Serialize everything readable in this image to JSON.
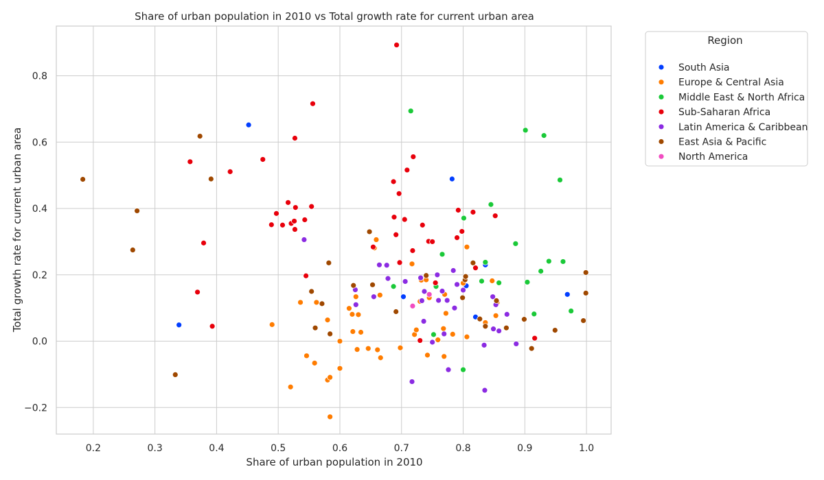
{
  "chart_data": {
    "type": "scatter",
    "title": "Share of urban population in 2010 vs Total growth rate for current urban area",
    "xlabel": "Share of urban population in 2010",
    "ylabel": "Total growth rate for current urban area",
    "xlim": [
      0.14,
      1.04
    ],
    "ylim": [
      -0.28,
      0.95
    ],
    "xticks": [
      0.2,
      0.3,
      0.4,
      0.5,
      0.6,
      0.7,
      0.8,
      0.9,
      1.0
    ],
    "xtick_labels": [
      "0.2",
      "0.3",
      "0.4",
      "0.5",
      "0.6",
      "0.7",
      "0.8",
      "0.9",
      "1.0"
    ],
    "yticks": [
      -0.2,
      0.0,
      0.2,
      0.4,
      0.6,
      0.8
    ],
    "ytick_labels": [
      "−0.2",
      "0.0",
      "0.2",
      "0.4",
      "0.6",
      "0.8"
    ],
    "grid": true,
    "legend": {
      "title": "Region",
      "placement": "outside-right"
    },
    "series": [
      {
        "name": "South Asia",
        "color": "#023eff",
        "points": [
          [
            0.452,
            0.652
          ],
          [
            0.339,
            0.049
          ],
          [
            0.782,
            0.489
          ],
          [
            0.703,
            0.134
          ],
          [
            0.805,
            0.167
          ],
          [
            0.836,
            0.23
          ],
          [
            0.82,
            0.073
          ],
          [
            0.969,
            0.141
          ]
        ]
      },
      {
        "name": "Europe & Central Asia",
        "color": "#ff7c00",
        "points": [
          [
            0.49,
            0.05
          ],
          [
            0.52,
            -0.138
          ],
          [
            0.536,
            0.117
          ],
          [
            0.546,
            -0.044
          ],
          [
            0.559,
            -0.066
          ],
          [
            0.562,
            0.117
          ],
          [
            0.58,
            -0.117
          ],
          [
            0.58,
            0.064
          ],
          [
            0.584,
            -0.228
          ],
          [
            0.584,
            -0.109
          ],
          [
            0.6,
            0.0
          ],
          [
            0.6,
            -0.082
          ],
          [
            0.615,
            0.099
          ],
          [
            0.62,
            0.081
          ],
          [
            0.621,
            0.029
          ],
          [
            0.626,
            0.134
          ],
          [
            0.628,
            -0.025
          ],
          [
            0.63,
            0.08
          ],
          [
            0.634,
            0.027
          ],
          [
            0.646,
            -0.022
          ],
          [
            0.656,
            0.281
          ],
          [
            0.659,
            0.306
          ],
          [
            0.661,
            -0.026
          ],
          [
            0.665,
            0.139
          ],
          [
            0.666,
            -0.05
          ],
          [
            0.698,
            -0.02
          ],
          [
            0.717,
            0.233
          ],
          [
            0.721,
            0.02
          ],
          [
            0.724,
            0.034
          ],
          [
            0.73,
            0.12
          ],
          [
            0.732,
            0.184
          ],
          [
            0.74,
            0.185
          ],
          [
            0.742,
            -0.042
          ],
          [
            0.745,
            0.131
          ],
          [
            0.759,
            0.004
          ],
          [
            0.768,
            0.038
          ],
          [
            0.769,
            -0.046
          ],
          [
            0.77,
            0.141
          ],
          [
            0.772,
            0.084
          ],
          [
            0.783,
            0.021
          ],
          [
            0.8,
            0.175
          ],
          [
            0.806,
            0.013
          ],
          [
            0.806,
            0.284
          ],
          [
            0.836,
            0.056
          ],
          [
            0.847,
            0.182
          ],
          [
            0.853,
            0.077
          ],
          [
            0.855,
            0.116
          ]
        ]
      },
      {
        "name": "Middle East & North Africa",
        "color": "#1ac938",
        "points": [
          [
            0.715,
            0.694
          ],
          [
            0.687,
            0.165
          ],
          [
            0.752,
            0.02
          ],
          [
            0.756,
            0.165
          ],
          [
            0.766,
            0.262
          ],
          [
            0.801,
            0.371
          ],
          [
            0.8,
            -0.086
          ],
          [
            0.83,
            0.181
          ],
          [
            0.836,
            0.238
          ],
          [
            0.845,
            0.412
          ],
          [
            0.858,
            0.176
          ],
          [
            0.885,
            0.294
          ],
          [
            0.901,
            0.636
          ],
          [
            0.904,
            0.178
          ],
          [
            0.915,
            0.082
          ],
          [
            0.926,
            0.211
          ],
          [
            0.931,
            0.62
          ],
          [
            0.939,
            0.241
          ],
          [
            0.957,
            0.486
          ],
          [
            0.962,
            0.24
          ],
          [
            0.975,
            0.091
          ]
        ]
      },
      {
        "name": "Sub-Saharan Africa",
        "color": "#e8000b",
        "points": [
          [
            0.692,
            0.893
          ],
          [
            0.556,
            0.716
          ],
          [
            0.527,
            0.612
          ],
          [
            0.475,
            0.548
          ],
          [
            0.422,
            0.511
          ],
          [
            0.357,
            0.541
          ],
          [
            0.379,
            0.296
          ],
          [
            0.369,
            0.148
          ],
          [
            0.393,
            0.045
          ],
          [
            0.489,
            0.351
          ],
          [
            0.497,
            0.385
          ],
          [
            0.507,
            0.35
          ],
          [
            0.516,
            0.418
          ],
          [
            0.521,
            0.355
          ],
          [
            0.526,
            0.362
          ],
          [
            0.527,
            0.337
          ],
          [
            0.528,
            0.403
          ],
          [
            0.543,
            0.366
          ],
          [
            0.545,
            0.197
          ],
          [
            0.554,
            0.406
          ],
          [
            0.654,
            0.284
          ],
          [
            0.687,
            0.481
          ],
          [
            0.688,
            0.374
          ],
          [
            0.691,
            0.321
          ],
          [
            0.696,
            0.445
          ],
          [
            0.697,
            0.237
          ],
          [
            0.705,
            0.367
          ],
          [
            0.709,
            0.516
          ],
          [
            0.718,
            0.273
          ],
          [
            0.719,
            0.556
          ],
          [
            0.73,
            0.002
          ],
          [
            0.734,
            0.35
          ],
          [
            0.744,
            0.301
          ],
          [
            0.75,
            0.3
          ],
          [
            0.755,
            0.176
          ],
          [
            0.79,
            0.312
          ],
          [
            0.792,
            0.395
          ],
          [
            0.798,
            0.331
          ],
          [
            0.816,
            0.389
          ],
          [
            0.82,
            0.221
          ],
          [
            0.852,
            0.378
          ],
          [
            0.916,
            0.009
          ]
        ]
      },
      {
        "name": "Latin America & Caribbean",
        "color": "#8b2be2",
        "points": [
          [
            0.542,
            0.306
          ],
          [
            0.625,
            0.155
          ],
          [
            0.626,
            0.11
          ],
          [
            0.655,
            0.134
          ],
          [
            0.664,
            0.23
          ],
          [
            0.676,
            0.229
          ],
          [
            0.678,
            0.189
          ],
          [
            0.706,
            0.18
          ],
          [
            0.717,
            -0.122
          ],
          [
            0.731,
            0.191
          ],
          [
            0.733,
            0.122
          ],
          [
            0.736,
            0.06
          ],
          [
            0.737,
            0.15
          ],
          [
            0.75,
            -0.003
          ],
          [
            0.758,
            0.2
          ],
          [
            0.76,
            0.123
          ],
          [
            0.766,
            0.151
          ],
          [
            0.769,
            0.022
          ],
          [
            0.774,
            0.123
          ],
          [
            0.776,
            -0.086
          ],
          [
            0.784,
            0.213
          ],
          [
            0.786,
            0.1
          ],
          [
            0.79,
            0.171
          ],
          [
            0.8,
            0.154
          ],
          [
            0.834,
            -0.012
          ],
          [
            0.835,
            -0.148
          ],
          [
            0.848,
            0.134
          ],
          [
            0.849,
            0.037
          ],
          [
            0.853,
            0.11
          ],
          [
            0.858,
            0.031
          ],
          [
            0.871,
            0.081
          ],
          [
            0.886,
            -0.008
          ]
        ]
      },
      {
        "name": "East Asia & Pacific",
        "color": "#9f4800",
        "points": [
          [
            0.183,
            0.488
          ],
          [
            0.264,
            0.275
          ],
          [
            0.271,
            0.393
          ],
          [
            0.333,
            -0.101
          ],
          [
            0.373,
            0.618
          ],
          [
            0.391,
            0.489
          ],
          [
            0.554,
            0.15
          ],
          [
            0.56,
            0.04
          ],
          [
            0.571,
            0.113
          ],
          [
            0.582,
            0.236
          ],
          [
            0.584,
            0.022
          ],
          [
            0.622,
            0.168
          ],
          [
            0.648,
            0.33
          ],
          [
            0.653,
            0.17
          ],
          [
            0.691,
            0.089
          ],
          [
            0.74,
            0.198
          ],
          [
            0.799,
            0.131
          ],
          [
            0.803,
            0.185
          ],
          [
            0.804,
            0.195
          ],
          [
            0.816,
            0.236
          ],
          [
            0.827,
            0.067
          ],
          [
            0.836,
            0.045
          ],
          [
            0.854,
            0.122
          ],
          [
            0.87,
            0.04
          ],
          [
            0.899,
            0.066
          ],
          [
            0.911,
            -0.022
          ],
          [
            0.949,
            0.033
          ],
          [
            0.995,
            0.062
          ],
          [
            0.999,
            0.207
          ],
          [
            0.999,
            0.145
          ]
        ]
      },
      {
        "name": "North America",
        "color": "#f14cc1",
        "points": [
          [
            0.718,
            0.106
          ],
          [
            0.745,
            0.141
          ]
        ]
      }
    ]
  }
}
